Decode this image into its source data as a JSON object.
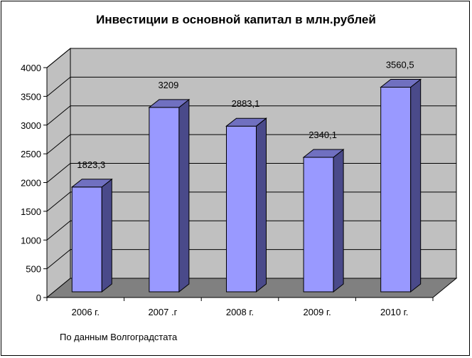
{
  "chart_data": {
    "type": "bar",
    "title": "Инвестиции в основной капитал в млн.рублей",
    "categories": [
      "2006 г.",
      "2007 .г",
      "2008 г.",
      "2009 г.",
      "2010 г."
    ],
    "values": [
      1823.3,
      3209,
      2883.1,
      2340.1,
      3560.5
    ],
    "value_labels": [
      "1823,3",
      "3209",
      "2883,1",
      "2340,1",
      "3560,5"
    ],
    "y_ticks": [
      "0",
      "500",
      "1000",
      "1500",
      "2000",
      "2500",
      "3000",
      "3500",
      "4000"
    ],
    "ylim": [
      0,
      4000
    ],
    "grid": true,
    "style": "3d",
    "colors": {
      "bar_front": "#9999ff",
      "bar_side": "#4a4a8a",
      "bar_top": "#7070c0",
      "back_wall": "#c0c0c0",
      "floor": "#808080"
    }
  },
  "footnote": "По данным Волгоградстата"
}
